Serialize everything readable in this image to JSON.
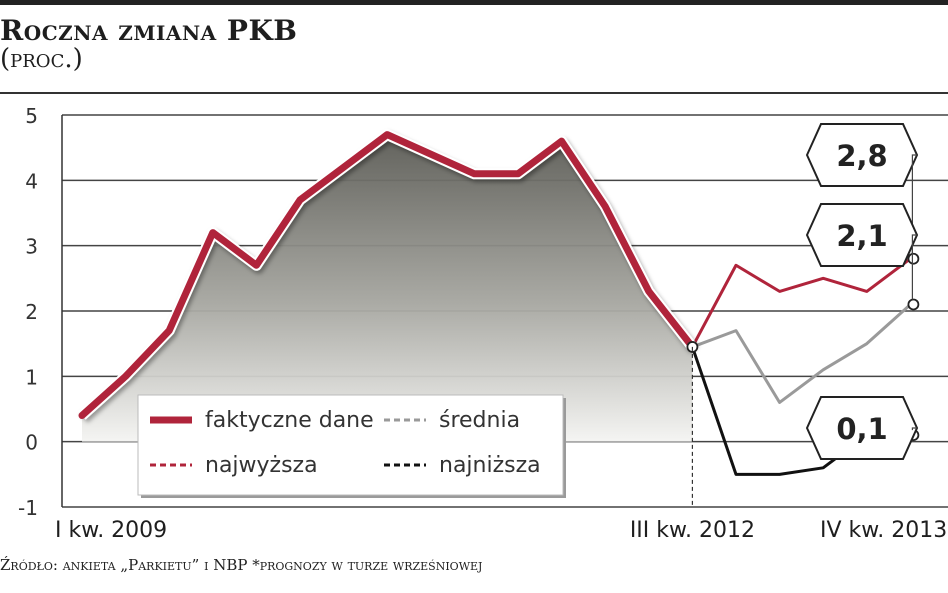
{
  "title": "Roczna zmiana PKB",
  "subtitle": "(proc.)",
  "source": "Źródło: ankieta „Parkietu” i NBP *prognozy w turze wrześniowej",
  "chart_data": {
    "type": "line",
    "ylim": [
      -1,
      5
    ],
    "yticks": [
      "5",
      "4",
      "3",
      "2",
      "1",
      "0",
      "-1"
    ],
    "x_labels": [
      {
        "index": 0,
        "text": "I kw. 2009"
      },
      {
        "index": 14,
        "text": "III kw. 2012"
      },
      {
        "index": 19,
        "text": "IV kw. 2013"
      }
    ],
    "grid": true,
    "series": [
      {
        "name": "faktyczne dane",
        "style": "solid",
        "color": "#b0243b",
        "x": [
          0,
          1,
          2,
          3,
          4,
          5,
          6,
          7,
          8,
          9,
          10,
          11,
          12,
          13,
          14
        ],
        "values": [
          0.4,
          1.0,
          1.7,
          3.2,
          2.7,
          3.7,
          4.2,
          4.7,
          4.4,
          4.1,
          4.1,
          4.6,
          3.6,
          2.3,
          1.45
        ]
      },
      {
        "name": "najwyższa",
        "style": "dashed",
        "color": "#b0243b",
        "x": [
          14,
          15,
          16,
          17,
          18,
          19
        ],
        "values": [
          1.45,
          2.7,
          2.3,
          2.5,
          2.3,
          2.8
        ]
      },
      {
        "name": "średnia",
        "style": "dashed",
        "color": "#9a9a9a",
        "x": [
          14,
          15,
          16,
          17,
          18,
          19
        ],
        "values": [
          1.45,
          1.7,
          0.6,
          1.1,
          1.5,
          2.1
        ]
      },
      {
        "name": "najniższa",
        "style": "dashed",
        "color": "#111111",
        "x": [
          14,
          15,
          16,
          17,
          18,
          19
        ],
        "values": [
          1.45,
          -0.5,
          -0.5,
          -0.4,
          0.1,
          0.1
        ]
      }
    ],
    "callouts": [
      {
        "text": "2,8",
        "value": 2.8
      },
      {
        "text": "2,1",
        "value": 2.1
      },
      {
        "text": "0,1",
        "value": 0.1
      }
    ],
    "legend": {
      "position": "bottom-left",
      "items": [
        {
          "label": "faktyczne dane",
          "color": "#b0243b",
          "style": "thick-solid"
        },
        {
          "label": "średnia",
          "color": "#9a9a9a",
          "style": "dashed"
        },
        {
          "label": "najwyższa",
          "color": "#b0243b",
          "style": "dashed"
        },
        {
          "label": "najniższa",
          "color": "#111111",
          "style": "dashed"
        }
      ]
    }
  }
}
